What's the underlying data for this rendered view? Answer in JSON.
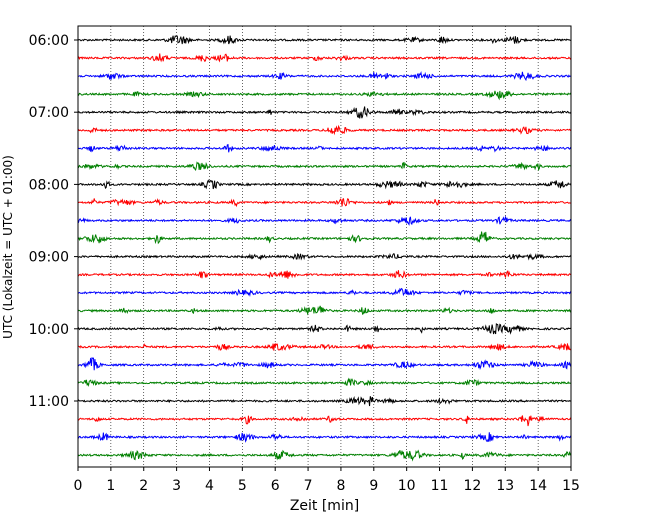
{
  "chart_data": {
    "type": "line",
    "title": "",
    "xlabel": "Zeit  [min]",
    "ylabel": "UTC (Lokalzeit = UTC + 01:00)",
    "xlim": [
      0,
      15
    ],
    "x_ticks": [
      "0",
      "1",
      "2",
      "3",
      "4",
      "5",
      "6",
      "7",
      "8",
      "9",
      "10",
      "11",
      "12",
      "13",
      "14",
      "15"
    ],
    "y_tick_labels": [
      "06:00",
      "07:00",
      "08:00",
      "09:00",
      "10:00",
      "11:00"
    ],
    "grid": {
      "vertical": true,
      "horizontal": false,
      "style": "dotted"
    },
    "trace_interval_minutes": 15,
    "trace_count": 24,
    "first_trace_start": "06:00",
    "trace_colors": [
      "#000000",
      "#ff0000",
      "#0000ff",
      "#008000"
    ]
  }
}
